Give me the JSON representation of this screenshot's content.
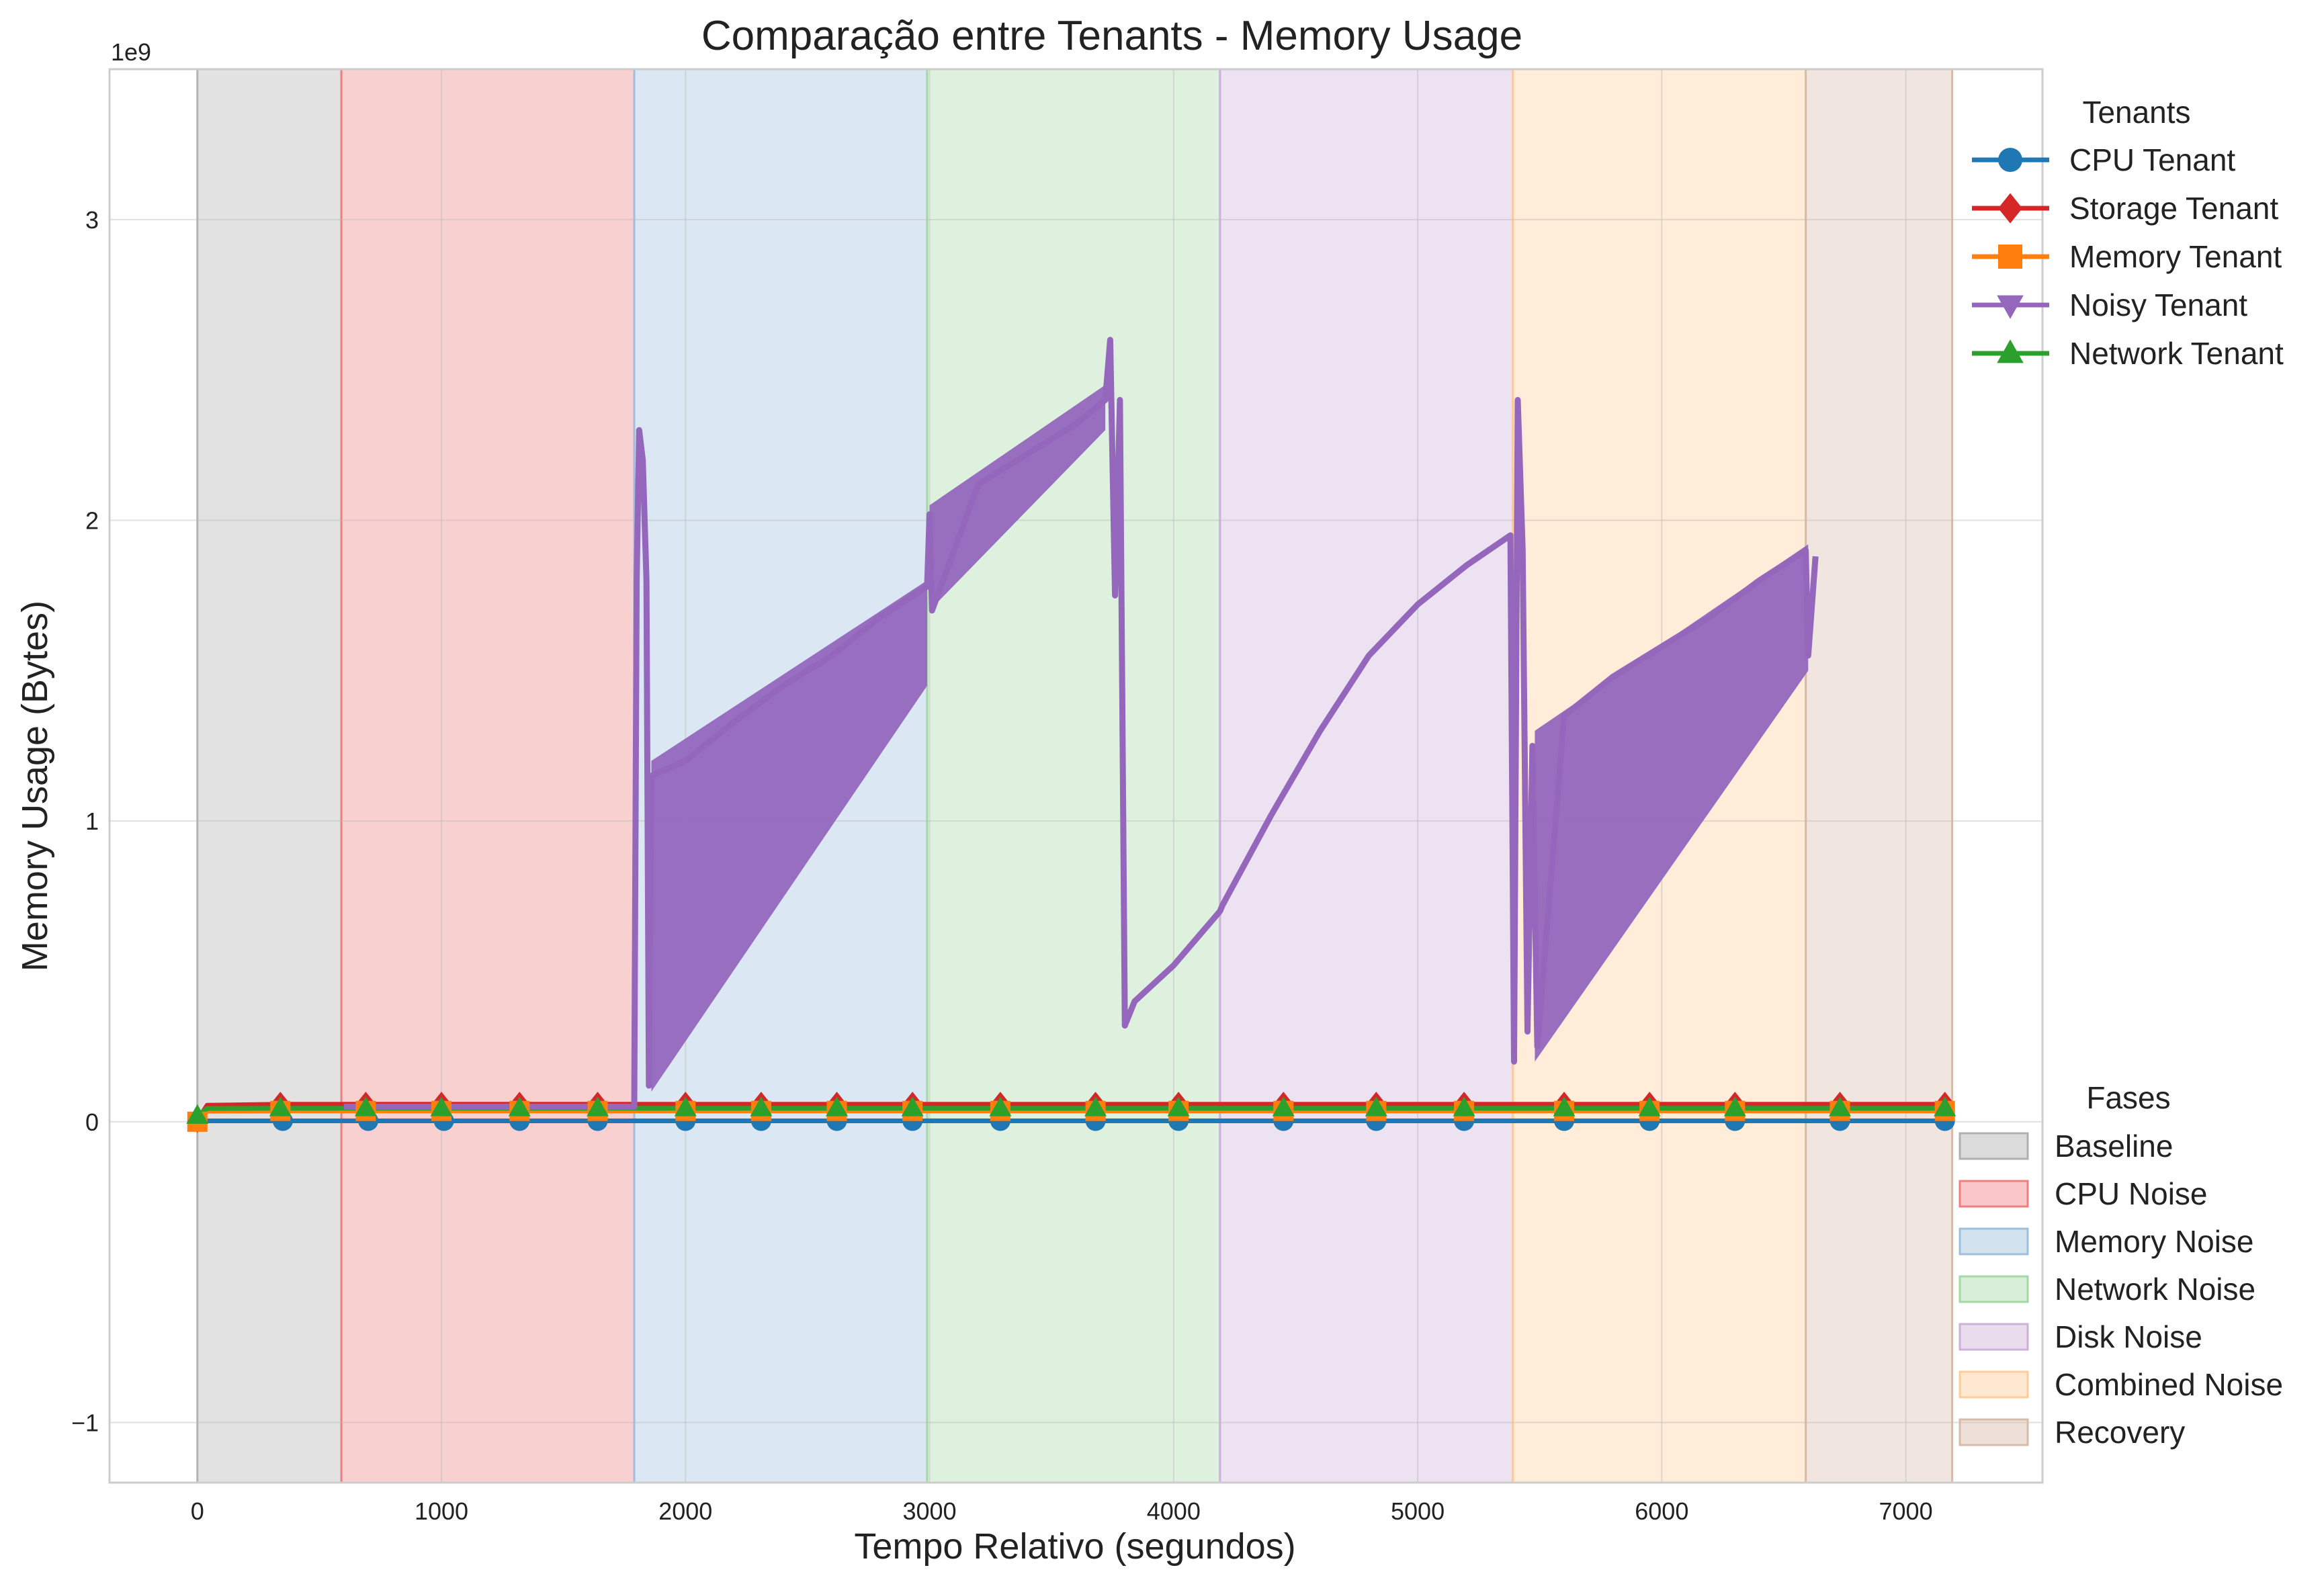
{
  "chart_data": {
    "type": "line",
    "title": "Comparação entre Tenants - Memory Usage",
    "xlabel": "Tempo Relativo (segundos)",
    "ylabel": "Memory Usage (Bytes)",
    "y_offset_label": "1e9",
    "xlim": [
      -360,
      7560
    ],
    "ylim": [
      -1.2,
      3.5
    ],
    "x_ticks": [
      0,
      1000,
      2000,
      3000,
      4000,
      5000,
      6000,
      7000
    ],
    "x_tick_labels": [
      "0",
      "1000",
      "2000",
      "3000",
      "4000",
      "5000",
      "6000",
      "7000"
    ],
    "y_ticks": [
      -1,
      0,
      1,
      2,
      3
    ],
    "y_tick_labels": [
      "−1",
      "0",
      "1",
      "2",
      "3"
    ],
    "grid": true,
    "tenants_legend": {
      "title": "Tenants",
      "placement": "top-right outside",
      "entries": [
        {
          "name": "CPU Tenant",
          "color": "#1f77b4",
          "marker": "circle"
        },
        {
          "name": "Storage Tenant",
          "color": "#d62728",
          "marker": "diamond"
        },
        {
          "name": "Memory Tenant",
          "color": "#ff7f0e",
          "marker": "square"
        },
        {
          "name": "Noisy Tenant",
          "color": "#9467bd",
          "marker": "triangle-down"
        },
        {
          "name": "Network Tenant",
          "color": "#2ca02c",
          "marker": "triangle-up"
        }
      ]
    },
    "phases_legend": {
      "title": "Fases",
      "placement": "bottom-right outside",
      "entries": [
        {
          "name": "Baseline",
          "start": 0,
          "end": 590,
          "color": "#b0b0b0"
        },
        {
          "name": "CPU Noise",
          "start": 590,
          "end": 1790,
          "color": "#f08080"
        },
        {
          "name": "Memory Noise",
          "start": 1790,
          "end": 2990,
          "color": "#9ebfdc"
        },
        {
          "name": "Network Noise",
          "start": 2990,
          "end": 4190,
          "color": "#a6d8a6"
        },
        {
          "name": "Disk Noise",
          "start": 4190,
          "end": 5390,
          "color": "#cdb1d8"
        },
        {
          "name": "Combined Noise",
          "start": 5390,
          "end": 6590,
          "color": "#ffcc99"
        },
        {
          "name": "Recovery",
          "start": 6590,
          "end": 7190,
          "color": "#d7bba9"
        }
      ]
    },
    "series": [
      {
        "name": "CPU Tenant",
        "color": "#1f77b4",
        "x": [
          0,
          350,
          700,
          1010,
          1320,
          1640,
          2000,
          2310,
          2620,
          2930,
          3290,
          3680,
          4020,
          4450,
          4830,
          5190,
          5600,
          5950,
          6300,
          6730,
          7160
        ],
        "values": [
          0.003,
          0.003,
          0.003,
          0.003,
          0.003,
          0.003,
          0.003,
          0.003,
          0.003,
          0.003,
          0.003,
          0.003,
          0.003,
          0.003,
          0.003,
          0.003,
          0.003,
          0.003,
          0.003,
          0.003,
          0.003
        ]
      },
      {
        "name": "Storage Tenant",
        "color": "#d62728",
        "x": [
          0,
          40,
          340,
          690,
          1000,
          1320,
          1640,
          2000,
          2310,
          2620,
          2930,
          3290,
          3680,
          4020,
          4450,
          4830,
          5190,
          5600,
          5950,
          6300,
          6730,
          7160
        ],
        "values": [
          0.005,
          0.055,
          0.058,
          0.058,
          0.058,
          0.058,
          0.058,
          0.058,
          0.058,
          0.058,
          0.058,
          0.058,
          0.058,
          0.058,
          0.058,
          0.058,
          0.058,
          0.058,
          0.058,
          0.058,
          0.058,
          0.058
        ]
      },
      {
        "name": "Memory Tenant",
        "color": "#ff7f0e",
        "x": [
          0,
          40,
          340,
          690,
          1000,
          1320,
          1640,
          2000,
          2310,
          2620,
          2930,
          3290,
          3680,
          4020,
          4450,
          4830,
          5190,
          5600,
          5950,
          6300,
          6730,
          7160
        ],
        "values": [
          0.0,
          0.035,
          0.036,
          0.036,
          0.036,
          0.036,
          0.036,
          0.036,
          0.036,
          0.036,
          0.036,
          0.036,
          0.036,
          0.036,
          0.036,
          0.036,
          0.036,
          0.036,
          0.036,
          0.036,
          0.036,
          0.036
        ]
      },
      {
        "name": "Network Tenant",
        "color": "#2ca02c",
        "x": [
          0,
          40,
          340,
          690,
          1000,
          1320,
          1640,
          2000,
          2310,
          2620,
          2930,
          3290,
          3680,
          4020,
          4450,
          4830,
          5190,
          5600,
          5950,
          6300,
          6730,
          7160
        ],
        "values": [
          0.02,
          0.044,
          0.045,
          0.045,
          0.045,
          0.045,
          0.045,
          0.045,
          0.045,
          0.045,
          0.045,
          0.045,
          0.045,
          0.045,
          0.045,
          0.045,
          0.045,
          0.045,
          0.045,
          0.045,
          0.045,
          0.045
        ]
      },
      {
        "name": "Noisy Tenant",
        "color": "#9467bd",
        "x": [
          600,
          900,
          1200,
          1500,
          1790,
          1800,
          1810,
          1825,
          1840,
          1850,
          1860,
          2000,
          2200,
          2400,
          2600,
          2800,
          2990,
          3000,
          3010,
          3200,
          3400,
          3600,
          3720,
          3740,
          3760,
          3780,
          3800,
          3820,
          3840,
          4000,
          4190,
          4200,
          4400,
          4600,
          4800,
          5000,
          5200,
          5380,
          5395,
          5410,
          5430,
          5450,
          5470,
          5490,
          5600,
          5800,
          6000,
          6200,
          6400,
          6590,
          6600,
          6630
        ],
        "values": [
          0.05,
          0.05,
          0.05,
          0.05,
          0.05,
          1.8,
          2.3,
          2.2,
          1.8,
          0.12,
          1.15,
          1.2,
          1.33,
          1.45,
          1.55,
          1.68,
          1.78,
          2.02,
          1.7,
          2.12,
          2.22,
          2.32,
          2.4,
          2.6,
          1.75,
          2.4,
          0.32,
          0.36,
          0.4,
          0.52,
          0.7,
          0.72,
          1.02,
          1.3,
          1.55,
          1.72,
          1.85,
          1.95,
          0.2,
          2.4,
          1.9,
          0.3,
          1.25,
          0.25,
          1.35,
          1.48,
          1.58,
          1.68,
          1.8,
          1.9,
          1.55,
          1.88
        ],
        "oscillation_bands": [
          {
            "x": [
              1860,
              2990
            ],
            "low": [
              0.1,
              1.45
            ],
            "high": [
              1.2,
              1.8
            ]
          },
          {
            "x": [
              3000,
              3720
            ],
            "low": [
              1.7,
              2.3
            ],
            "high": [
              2.05,
              2.45
            ]
          },
          {
            "x": [
              5480,
              6600
            ],
            "low": [
              0.2,
              1.5
            ],
            "high": [
              1.3,
              1.92
            ]
          }
        ]
      }
    ]
  }
}
